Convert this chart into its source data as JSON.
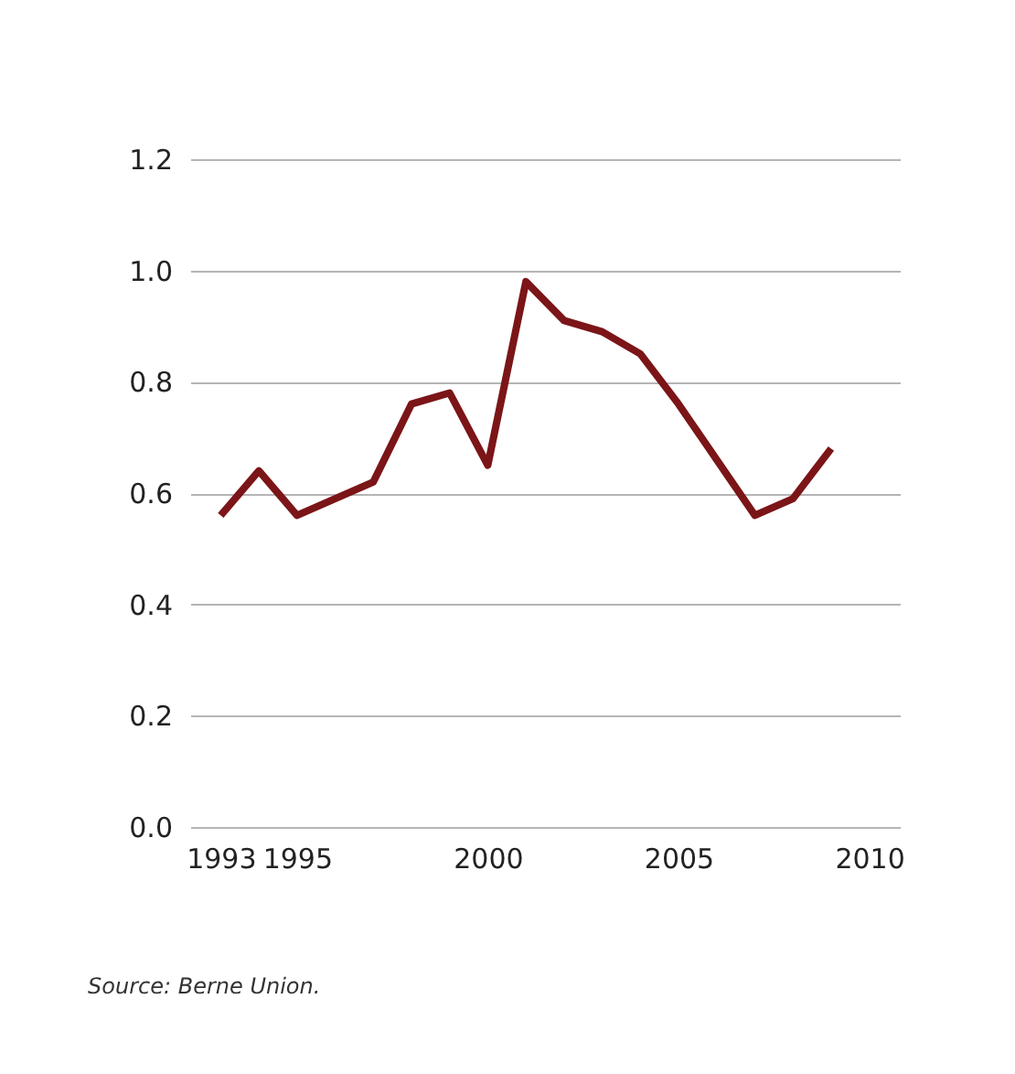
{
  "chart_data": {
    "type": "line",
    "x": [
      1993,
      1994,
      1995,
      1997,
      1998,
      1999,
      2000,
      2001,
      2002,
      2003,
      2004,
      2005,
      2007,
      2008,
      2009
    ],
    "series": [
      {
        "color": "#7b1518",
        "values": [
          0.56,
          0.64,
          0.56,
          0.62,
          0.76,
          0.78,
          0.65,
          0.98,
          0.91,
          0.89,
          0.85,
          0.76,
          0.56,
          0.59,
          0.68
        ]
      }
    ],
    "xlim": [
      1992.2,
      2010.8
    ],
    "xticks": [
      1993,
      1995,
      2000,
      2005,
      2010
    ],
    "ylim": [
      0,
      1.2
    ],
    "yticks": [
      {
        "value": 0,
        "label": "0.0"
      },
      {
        "value": 0.2,
        "label": "0.2"
      },
      {
        "value": 0.4,
        "label": "0.4"
      },
      {
        "value": 0.6,
        "label": "0.6"
      },
      {
        "value": 0.8,
        "label": "0.8"
      },
      {
        "value": 1,
        "label": "1.0"
      },
      {
        "value": 1.2,
        "label": "1.2"
      }
    ],
    "grid": "y",
    "marker": "none",
    "line_style": "solid",
    "annotations": [
      "Source: Berne Union."
    ]
  }
}
